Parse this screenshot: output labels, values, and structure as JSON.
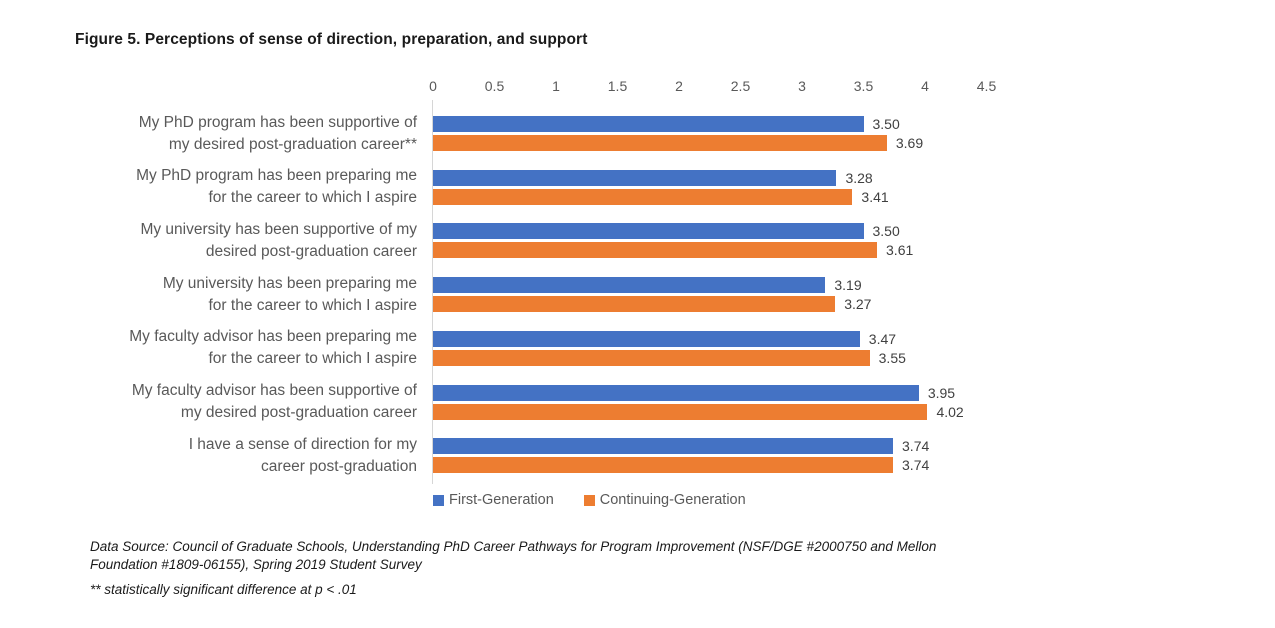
{
  "title": "Figure 5. Perceptions of sense of direction, preparation, and support",
  "chart_data": {
    "type": "bar",
    "orientation": "horizontal",
    "title": "Figure 5. Perceptions of sense of direction, preparation, and support",
    "categories": [
      "My PhD program has been supportive of\nmy desired post-graduation career**",
      "My PhD program has been preparing me\nfor the career to which I aspire",
      "My university has been supportive of my\ndesired post-graduation career",
      "My university has been preparing me\nfor the career to which I aspire",
      "My faculty advisor has been preparing me\nfor the career to which I aspire",
      "My faculty advisor has been supportive of\nmy desired post-graduation career",
      "I have a sense of direction for my\ncareer post-graduation"
    ],
    "series": [
      {
        "name": "First-Generation",
        "color": "#4472C4",
        "values": [
          3.5,
          3.28,
          3.5,
          3.19,
          3.47,
          3.95,
          3.74
        ]
      },
      {
        "name": "Continuing-Generation",
        "color": "#ED7D31",
        "values": [
          3.69,
          3.41,
          3.61,
          3.27,
          3.55,
          4.02,
          3.74
        ]
      }
    ],
    "xlim": [
      0,
      4.5
    ],
    "x_tick_labels": [
      "0",
      "0.5",
      "1",
      "1.5",
      "2",
      "2.5",
      "3",
      "3.5",
      "4",
      "4.5"
    ],
    "value_labels": true,
    "value_label_format": "2-decimals",
    "grid": false,
    "legend_position": "bottom",
    "axis_line_color": "#d6d6d6"
  },
  "notes": {
    "source": "Data Source: Council of Graduate Schools, Understanding PhD Career Pathways for Program Improvement (NSF/DGE #2000750 and Mellon Foundation #1809-06155), Spring 2019 Student Survey",
    "significance": "** statistically significant difference at p < .01"
  }
}
